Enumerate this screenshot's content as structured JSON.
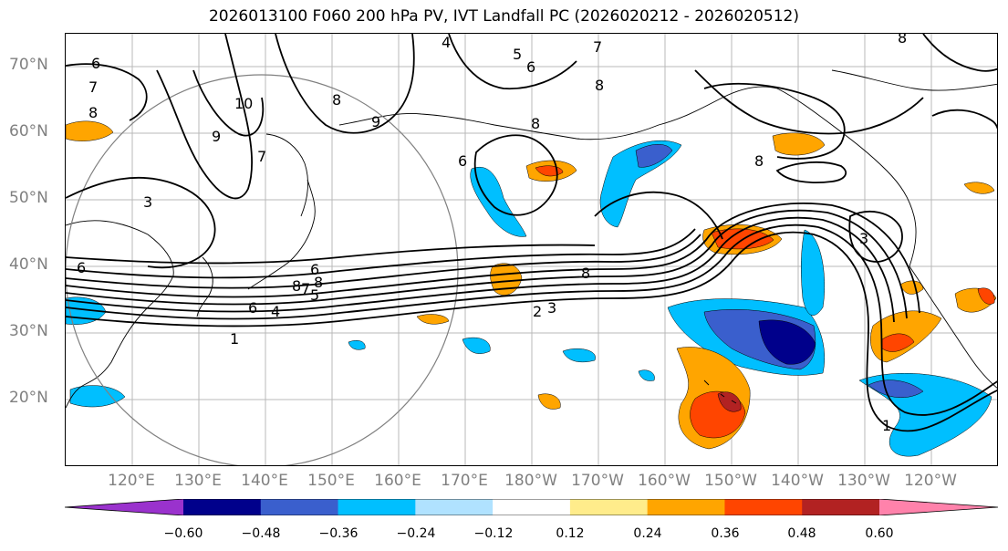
{
  "title": "2026013100 F060 200 hPa PV, IVT Landfall PC (2026020212 - 2026020512)",
  "lat_labels": [
    "70°N",
    "60°N",
    "50°N",
    "40°N",
    "30°N",
    "20°N"
  ],
  "lon_labels": [
    "120°E",
    "130°E",
    "140°E",
    "150°E",
    "160°E",
    "170°E",
    "180°W",
    "170°W",
    "160°W",
    "150°W",
    "140°W",
    "130°W",
    "120°W"
  ],
  "colorbar": {
    "ticks": [
      "−0.60",
      "−0.48",
      "−0.36",
      "−0.24",
      "−0.12",
      "0.12",
      "0.24",
      "0.36",
      "0.48",
      "0.60"
    ],
    "colors": [
      "#9a32cd",
      "#00008b",
      "#3a5fcd",
      "#00bfff",
      "#b0e2ff",
      "#ffffff",
      "#ffec8b",
      "#ffa500",
      "#ff4500",
      "#b22222",
      "#ff82ab"
    ]
  },
  "contour_labels": [
    "4",
    "5",
    "6",
    "7",
    "6",
    "7",
    "8",
    "10",
    "9",
    "7",
    "8",
    "9",
    "8",
    "6",
    "8",
    "8",
    "8",
    "6",
    "8",
    "8",
    "3",
    "6",
    "5",
    "7",
    "8",
    "6",
    "4",
    "3",
    "2",
    "1",
    "1",
    "3"
  ]
}
